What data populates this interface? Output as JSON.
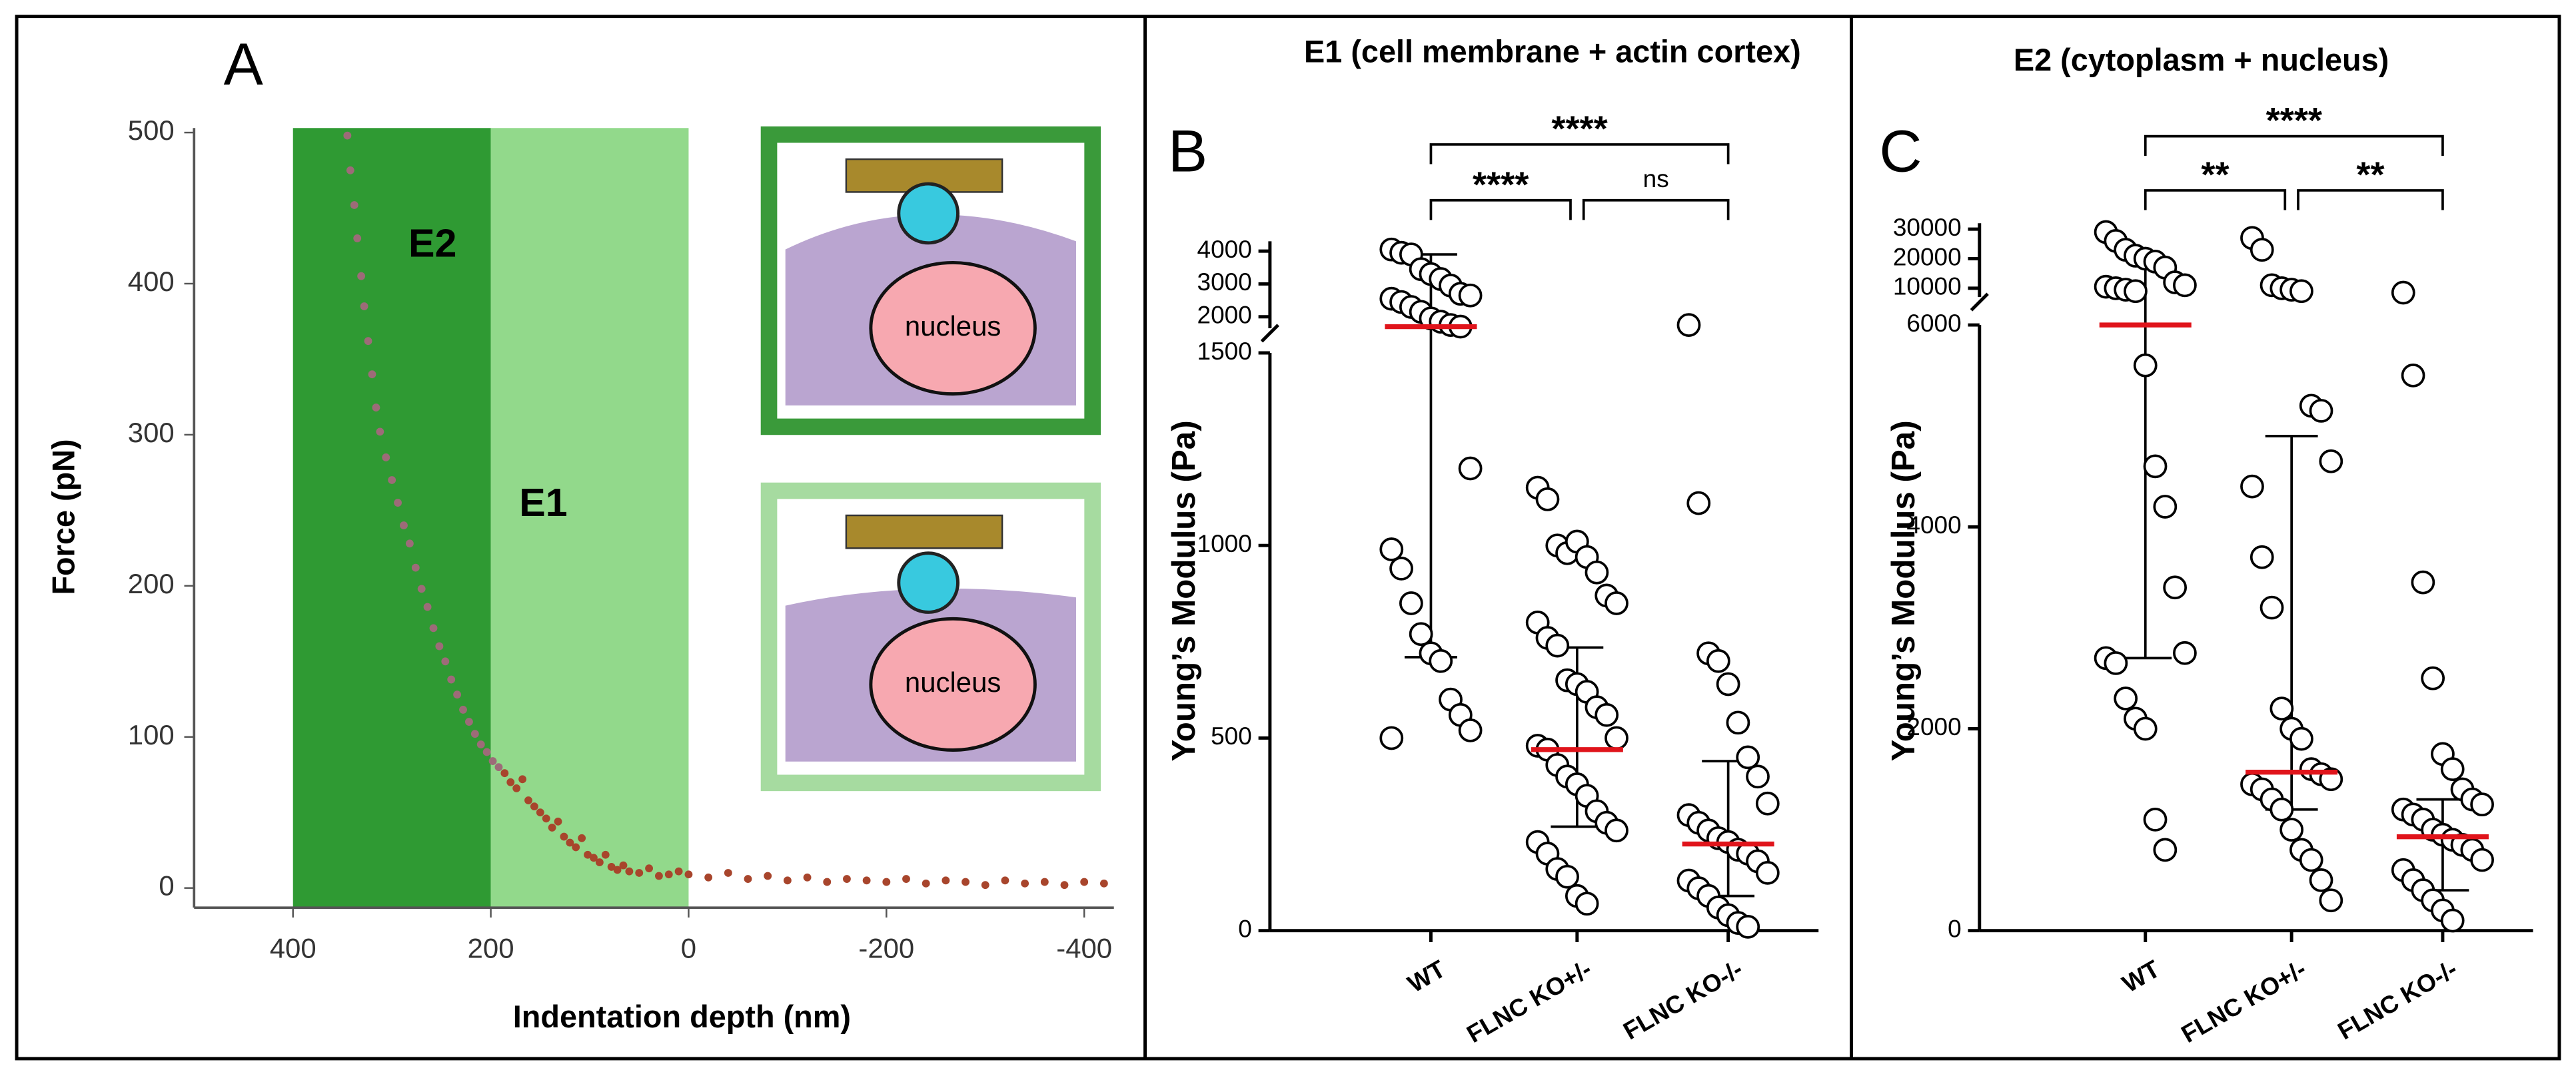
{
  "chart_data": [
    {
      "type": "scatter",
      "panel_label": "A",
      "xlabel": "Indentation depth (nm)",
      "ylabel": "Force (pN)",
      "xlim": [
        500,
        -430
      ],
      "xticks": [
        400,
        200,
        0,
        -200,
        -400
      ],
      "ylim": [
        -13,
        503
      ],
      "yticks": [
        0,
        100,
        200,
        300,
        400,
        500
      ],
      "color": "#a8452c",
      "regions": [
        {
          "label": "E2",
          "from": 400,
          "to": 200,
          "color": "#2f9a33"
        },
        {
          "label": "E1",
          "from": 200,
          "to": 0,
          "color": "#92d98b"
        }
      ],
      "annotations": [
        "nucleus",
        "nucleus"
      ],
      "x": [
        345,
        342,
        338,
        335,
        331,
        328,
        324,
        320,
        316,
        312,
        306,
        300,
        294,
        288,
        282,
        276,
        270,
        264,
        258,
        252,
        246,
        240,
        234,
        228,
        222,
        216,
        210,
        204,
        198,
        192,
        186,
        180,
        174,
        168,
        162,
        156,
        150,
        144,
        138,
        132,
        126,
        120,
        114,
        108,
        102,
        96,
        90,
        84,
        78,
        72,
        66,
        60,
        50,
        40,
        30,
        20,
        10,
        0,
        -20,
        -40,
        -60,
        -80,
        -100,
        -120,
        -140,
        -160,
        -180,
        -200,
        -220,
        -240,
        -260,
        -280,
        -300,
        -320,
        -340,
        -360,
        -380,
        -400,
        -420
      ],
      "values": [
        498,
        475,
        452,
        430,
        405,
        385,
        362,
        340,
        318,
        302,
        285,
        270,
        255,
        240,
        228,
        212,
        198,
        186,
        172,
        160,
        150,
        138,
        128,
        118,
        110,
        102,
        95,
        90,
        84,
        80,
        76,
        70,
        66,
        72,
        58,
        54,
        50,
        46,
        40,
        44,
        34,
        30,
        27,
        33,
        22,
        20,
        17,
        22,
        14,
        12,
        15,
        11,
        10,
        13,
        8,
        9,
        11,
        9,
        7,
        10,
        6,
        8,
        5,
        7,
        4,
        6,
        5,
        4,
        6,
        3,
        5,
        4,
        2,
        5,
        3,
        4,
        2,
        4,
        3
      ]
    },
    {
      "type": "dotplot",
      "panel_label": "B",
      "title": "E1 (cell membrane + actin cortex)",
      "ylabel": "Young’s Modulus (Pa)",
      "categories": [
        "WT",
        "FLNC KO+/-",
        "FLNC KO-/-"
      ],
      "segments": [
        {
          "ylim": [
            0,
            1500
          ],
          "yticks": [
            0,
            500,
            1000,
            1500
          ]
        },
        {
          "ylim": [
            1650,
            4300
          ],
          "yticks": [
            2000,
            3000,
            4000
          ]
        }
      ],
      "median_color": "#e0141b",
      "groups": [
        {
          "values": [
            4050,
            3950,
            3900,
            3450,
            3300,
            3150,
            2950,
            2700,
            2650,
            2550,
            2450,
            2300,
            2150,
            1950,
            1850,
            1750,
            1700,
            1200,
            990,
            940,
            850,
            770,
            720,
            700,
            600,
            560,
            520,
            500
          ],
          "median": 1700,
          "error": [
            710,
            3900
          ]
        },
        {
          "values": [
            1150,
            1120,
            1000,
            980,
            1010,
            970,
            930,
            870,
            850,
            800,
            760,
            740,
            650,
            640,
            620,
            580,
            560,
            500,
            480,
            470,
            430,
            400,
            380,
            350,
            310,
            280,
            260,
            230,
            200,
            160,
            140,
            90,
            70
          ],
          "median": 470,
          "error": [
            270,
            735
          ]
        },
        {
          "values": [
            1750,
            1110,
            720,
            700,
            640,
            540,
            450,
            400,
            330,
            300,
            280,
            260,
            240,
            230,
            210,
            200,
            180,
            150,
            130,
            110,
            90,
            60,
            40,
            20,
            10
          ],
          "median": 225,
          "error": [
            90,
            440
          ]
        }
      ],
      "significance": [
        {
          "from": 0,
          "to": 2,
          "label": "****"
        },
        {
          "from": 0,
          "to": 1,
          "label": "****"
        },
        {
          "from": 1,
          "to": 2,
          "label": "ns"
        }
      ]
    },
    {
      "type": "dotplot",
      "panel_label": "C",
      "title": "E2 (cytoplasm + nucleus)",
      "ylabel": "Young’s Modulus (Pa)",
      "categories": [
        "WT",
        "FLNC KO+/-",
        "FLNC KO-/-"
      ],
      "segments": [
        {
          "ylim": [
            0,
            6000
          ],
          "yticks": [
            0,
            2000,
            4000,
            6000
          ]
        },
        {
          "ylim": [
            7000,
            32000
          ],
          "yticks": [
            10000,
            20000,
            30000
          ]
        }
      ],
      "median_color": "#e0141b",
      "groups": [
        {
          "values": [
            29000,
            26000,
            23000,
            21000,
            20000,
            19000,
            17000,
            12000,
            11000,
            10500,
            10000,
            9500,
            9000,
            5600,
            4600,
            4200,
            3400,
            2750,
            2700,
            2650,
            2300,
            2100,
            2000,
            1100,
            800
          ],
          "median": 6000,
          "error": [
            2700,
            20000
          ]
        },
        {
          "values": [
            27000,
            23000,
            11000,
            10000,
            9500,
            9000,
            5200,
            5150,
            4650,
            4400,
            3700,
            3200,
            2200,
            2000,
            1900,
            1600,
            1550,
            1500,
            1450,
            1400,
            1300,
            1200,
            1000,
            800,
            700,
            500,
            300
          ],
          "median": 1570,
          "error": [
            1200,
            4900
          ]
        },
        {
          "values": [
            8500,
            5500,
            3450,
            2500,
            1750,
            1600,
            1400,
            1300,
            1250,
            1200,
            1150,
            1100,
            1000,
            950,
            900,
            850,
            800,
            700,
            600,
            500,
            400,
            300,
            200,
            100
          ],
          "median": 930,
          "error": [
            400,
            1300
          ]
        }
      ],
      "significance": [
        {
          "from": 0,
          "to": 2,
          "label": "****"
        },
        {
          "from": 0,
          "to": 1,
          "label": "**"
        },
        {
          "from": 1,
          "to": 2,
          "label": "**"
        }
      ]
    }
  ]
}
